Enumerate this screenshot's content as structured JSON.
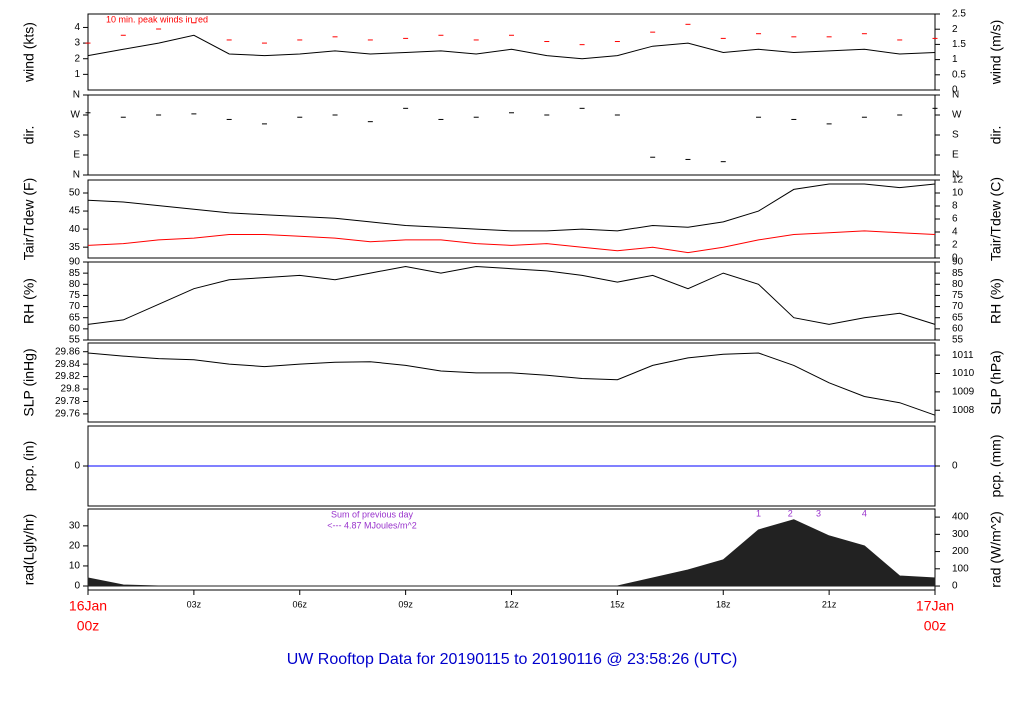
{
  "title": "UW Rooftop Data for 20190115  to  20190116 @ 23:58:26  (UTC)",
  "chart_data": [
    {
      "type": "line",
      "ylabel": "wind (kts)",
      "y2label": "wind (m/s)",
      "annotation": "10 min. peak winds in red",
      "xlim": [
        0,
        24
      ],
      "ylim": [
        0,
        4.86
      ],
      "yticks": [
        1,
        2,
        3,
        4
      ],
      "y2lim": [
        0,
        2.5
      ],
      "y2ticks": [
        0,
        0.5,
        1,
        1.5,
        2,
        2.5
      ],
      "x": [
        0,
        1,
        2,
        3,
        4,
        5,
        6,
        7,
        8,
        9,
        10,
        11,
        12,
        13,
        14,
        15,
        16,
        17,
        18,
        19,
        20,
        21,
        22,
        23,
        24
      ],
      "series": [
        {
          "name": "wind",
          "color": "#000000",
          "marker": "line",
          "values": [
            2.2,
            2.6,
            3.0,
            3.5,
            2.3,
            2.2,
            2.3,
            2.5,
            2.3,
            2.4,
            2.5,
            2.3,
            2.6,
            2.2,
            2.0,
            2.2,
            2.8,
            3.0,
            2.4,
            2.6,
            2.4,
            2.5,
            2.6,
            2.3,
            2.4
          ]
        },
        {
          "name": "peak",
          "color": "#ff0000",
          "marker": "dash",
          "values": [
            3.0,
            3.5,
            3.9,
            4.3,
            3.2,
            3.0,
            3.2,
            3.4,
            3.2,
            3.3,
            3.5,
            3.2,
            3.5,
            3.1,
            2.9,
            3.1,
            3.7,
            4.2,
            3.3,
            3.6,
            3.4,
            3.4,
            3.6,
            3.2,
            3.3
          ]
        }
      ]
    },
    {
      "type": "scatter",
      "ylabel": "dir.",
      "y2label": "dir.",
      "xlim": [
        0,
        24
      ],
      "ylim": [
        0,
        360
      ],
      "yticks": [
        {
          "value": 0,
          "label": "N"
        },
        {
          "value": 90,
          "label": "E"
        },
        {
          "value": 180,
          "label": "S"
        },
        {
          "value": 270,
          "label": "W"
        },
        {
          "value": 360,
          "label": "N"
        }
      ],
      "y2lim": [
        0,
        360
      ],
      "y2ticks": [
        {
          "value": 0,
          "label": "N"
        },
        {
          "value": 90,
          "label": "E"
        },
        {
          "value": 180,
          "label": "S"
        },
        {
          "value": 270,
          "label": "W"
        },
        {
          "value": 360,
          "label": "N"
        }
      ],
      "x": [
        0,
        1,
        2,
        3,
        4,
        5,
        6,
        7,
        8,
        9,
        10,
        11,
        12,
        13,
        14,
        15,
        16,
        17,
        18,
        19,
        20,
        21,
        22,
        23,
        24
      ],
      "series": [
        {
          "name": "direction",
          "color": "#000000",
          "values": [
            280,
            260,
            270,
            275,
            250,
            230,
            260,
            270,
            240,
            300,
            250,
            260,
            280,
            270,
            300,
            270,
            80,
            70,
            60,
            260,
            250,
            230,
            260,
            270,
            300
          ]
        }
      ]
    },
    {
      "type": "line",
      "ylabel": "Tair/Tdew (F)",
      "y2label": "Tair/Tdew (C)",
      "xlim": [
        0,
        24
      ],
      "ylim": [
        32,
        53.6
      ],
      "yticks": [
        35,
        40,
        45,
        50
      ],
      "y2lim": [
        0,
        12
      ],
      "y2ticks": [
        0,
        2,
        4,
        6,
        8,
        10,
        12
      ],
      "x": [
        0,
        1,
        2,
        3,
        4,
        5,
        6,
        7,
        8,
        9,
        10,
        11,
        12,
        13,
        14,
        15,
        16,
        17,
        18,
        19,
        20,
        21,
        22,
        23,
        24
      ],
      "series": [
        {
          "name": "Tair",
          "color": "#000000",
          "marker": "line",
          "values": [
            48,
            47.5,
            46.5,
            45.5,
            44.5,
            44,
            43.5,
            43,
            42,
            41,
            40.5,
            40,
            39.5,
            39.5,
            40,
            39.5,
            41,
            40.5,
            42,
            45,
            51,
            52.5,
            52.5,
            51.5,
            52.5
          ]
        },
        {
          "name": "Tdew",
          "color": "#ff0000",
          "marker": "line",
          "values": [
            35.5,
            36,
            37,
            37.5,
            38.5,
            38.5,
            38,
            37.5,
            36.5,
            37,
            37,
            36,
            35.5,
            36,
            35,
            34,
            35,
            33.5,
            35,
            37,
            38.5,
            39,
            39.5,
            39,
            38.5
          ]
        }
      ]
    },
    {
      "type": "line",
      "ylabel": "RH (%)",
      "y2label": "RH (%)",
      "xlim": [
        0,
        24
      ],
      "ylim": [
        55,
        90
      ],
      "yticks": [
        55,
        60,
        65,
        70,
        75,
        80,
        85,
        90
      ],
      "y2lim": [
        55,
        90
      ],
      "y2ticks": [
        55,
        60,
        65,
        70,
        75,
        80,
        85,
        90
      ],
      "x": [
        0,
        1,
        2,
        3,
        4,
        5,
        6,
        7,
        8,
        9,
        10,
        11,
        12,
        13,
        14,
        15,
        16,
        17,
        18,
        19,
        20,
        21,
        22,
        23,
        24
      ],
      "series": [
        {
          "name": "RH",
          "color": "#000000",
          "marker": "line",
          "values": [
            62,
            64,
            71,
            78,
            82,
            83,
            84,
            82,
            85,
            88,
            85,
            88,
            87,
            86,
            84,
            81,
            84,
            78,
            85,
            80,
            65,
            62,
            65,
            67,
            62
          ]
        }
      ]
    },
    {
      "type": "line",
      "ylabel": "SLP (inHg)",
      "y2label": "SLP (hPa)",
      "xlim": [
        0,
        24
      ],
      "ylim": [
        29.747,
        29.874
      ],
      "yticks": [
        29.76,
        29.78,
        29.8,
        29.82,
        29.84,
        29.86
      ],
      "y2lim": [
        1007.36,
        1011.66
      ],
      "y2ticks": [
        1008,
        1009,
        1010,
        1011
      ],
      "x": [
        0,
        1,
        2,
        3,
        4,
        5,
        6,
        7,
        8,
        9,
        10,
        11,
        12,
        13,
        14,
        15,
        16,
        17,
        18,
        19,
        20,
        21,
        22,
        23,
        24
      ],
      "series": [
        {
          "name": "SLP",
          "color": "#000000",
          "marker": "line",
          "values": [
            29.858,
            29.853,
            29.849,
            29.847,
            29.84,
            29.836,
            29.84,
            29.843,
            29.844,
            29.838,
            29.829,
            29.826,
            29.826,
            29.822,
            29.817,
            29.815,
            29.838,
            29.85,
            29.856,
            29.858,
            29.838,
            29.81,
            29.788,
            29.778,
            29.758
          ]
        }
      ]
    },
    {
      "type": "line",
      "ylabel": "pcp. (in)",
      "y2label": "pcp. (mm)",
      "xlim": [
        0,
        24
      ],
      "ylim": [
        -1,
        1
      ],
      "yticks": [
        0
      ],
      "y2lim": [
        -25.4,
        25.4
      ],
      "y2ticks": [
        0
      ],
      "x": [
        0,
        1,
        2,
        3,
        4,
        5,
        6,
        7,
        8,
        9,
        10,
        11,
        12,
        13,
        14,
        15,
        16,
        17,
        18,
        19,
        20,
        21,
        22,
        23,
        24
      ],
      "series": [
        {
          "name": "pcp",
          "color": "#0000ff",
          "marker": "line",
          "values": [
            0,
            0,
            0,
            0,
            0,
            0,
            0,
            0,
            0,
            0,
            0,
            0,
            0,
            0,
            0,
            0,
            0,
            0,
            0,
            0,
            0,
            0,
            0,
            0,
            0
          ]
        }
      ]
    },
    {
      "type": "area",
      "ylabel": "rad(Lgly/hr)",
      "y2label": "rad (W/m^2)",
      "annotations": [
        "Sum of previous day",
        "<--- 4.87 MJoules/m^2"
      ],
      "peak_labels": [
        "1",
        "2",
        "3",
        "4"
      ],
      "xlim": [
        0,
        24
      ],
      "ylim": [
        -2,
        38.4
      ],
      "yticks": [
        0,
        10,
        20,
        30
      ],
      "y2lim": [
        -23,
        447
      ],
      "y2ticks": [
        0,
        100,
        200,
        300,
        400
      ],
      "xticks": [
        {
          "value": 0,
          "label": "00z"
        },
        {
          "value": 3,
          "label": "03z"
        },
        {
          "value": 6,
          "label": "06z"
        },
        {
          "value": 9,
          "label": "09z"
        },
        {
          "value": 12,
          "label": "12z"
        },
        {
          "value": 15,
          "label": "15z"
        },
        {
          "value": 18,
          "label": "18z"
        },
        {
          "value": 21,
          "label": "21z"
        },
        {
          "value": 24,
          "label": "00z"
        }
      ],
      "date_labels": [
        "16Jan",
        "17Jan"
      ],
      "x": [
        0,
        1,
        2,
        3,
        4,
        5,
        6,
        7,
        8,
        9,
        10,
        11,
        12,
        13,
        14,
        15,
        16,
        17,
        18,
        19,
        20,
        21,
        22,
        23,
        24
      ],
      "series": [
        {
          "name": "radiation",
          "color": "#222222",
          "values": [
            4,
            0.5,
            0,
            0,
            0,
            0,
            0,
            0,
            0,
            0,
            0,
            0,
            0,
            0,
            0,
            0,
            4,
            8,
            13,
            28,
            33,
            25,
            20,
            5,
            4
          ]
        }
      ]
    }
  ]
}
